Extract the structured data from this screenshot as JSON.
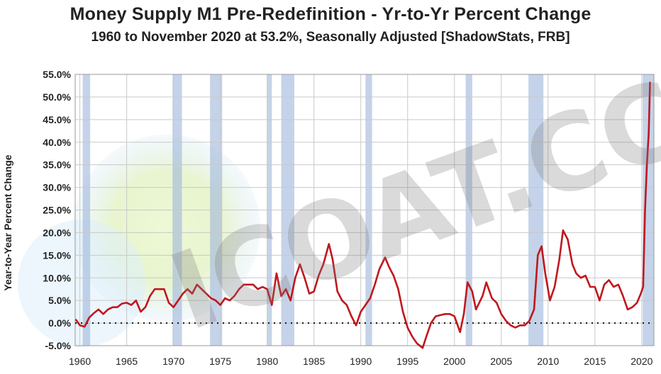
{
  "chart_data": {
    "type": "line",
    "title": "Money Supply M1 Pre-Redefinition -  Yr-to-Yr Percent Change",
    "subtitle": "1960 to November 2020 at 53.2%, Seasonally Adjusted  [ShadowStats, FRB]",
    "xlabel": "",
    "ylabel": "Year-to-Year Percent Change",
    "xlim": [
      1959.5,
      2021.3
    ],
    "ylim": [
      -5,
      55
    ],
    "yticks": [
      -5,
      0,
      5,
      10,
      15,
      20,
      25,
      30,
      35,
      40,
      45,
      50,
      55
    ],
    "ytick_labels": [
      "-5.0%",
      "0.0%",
      "5.0%",
      "10.0%",
      "15.0%",
      "20.0%",
      "25.0%",
      "30.0%",
      "35.0%",
      "40.0%",
      "45.0%",
      "50.0%",
      "55.0%"
    ],
    "xticks": [
      1960,
      1965,
      1970,
      1975,
      1980,
      1985,
      1990,
      1995,
      2000,
      2005,
      2010,
      2015,
      2020
    ],
    "xtick_labels": [
      "1960",
      "1965",
      "1970",
      "1975",
      "1980",
      "1985",
      "1990",
      "1995",
      "2000",
      "2005",
      "2010",
      "2015",
      "2020"
    ],
    "grid": true,
    "recessions": [
      [
        1960.3,
        1961.1
      ],
      [
        1969.9,
        1970.9
      ],
      [
        1973.9,
        1975.2
      ],
      [
        1980.0,
        1980.5
      ],
      [
        1981.5,
        1982.9
      ],
      [
        1990.5,
        1991.2
      ],
      [
        2001.2,
        2001.9
      ],
      [
        2007.9,
        2009.5
      ],
      [
        2020.1,
        2021.3
      ]
    ],
    "series": [
      {
        "name": "M1 Pre-Redefinition Yr-to-Yr % Change",
        "color": "#c0171d",
        "points": [
          [
            1959.6,
            0.7
          ],
          [
            1960.0,
            -0.5
          ],
          [
            1960.5,
            -0.8
          ],
          [
            1961.0,
            1.2
          ],
          [
            1961.5,
            2.2
          ],
          [
            1962.0,
            3.0
          ],
          [
            1962.5,
            2.0
          ],
          [
            1963.0,
            3.0
          ],
          [
            1963.5,
            3.5
          ],
          [
            1964.0,
            3.5
          ],
          [
            1964.5,
            4.3
          ],
          [
            1965.0,
            4.5
          ],
          [
            1965.5,
            4.0
          ],
          [
            1966.0,
            5.0
          ],
          [
            1966.5,
            2.5
          ],
          [
            1967.0,
            3.5
          ],
          [
            1967.5,
            6.0
          ],
          [
            1968.0,
            7.5
          ],
          [
            1968.5,
            7.5
          ],
          [
            1969.0,
            7.5
          ],
          [
            1969.5,
            4.5
          ],
          [
            1970.0,
            3.5
          ],
          [
            1970.5,
            5.0
          ],
          [
            1971.0,
            6.5
          ],
          [
            1971.5,
            7.5
          ],
          [
            1972.0,
            6.5
          ],
          [
            1972.5,
            8.5
          ],
          [
            1973.0,
            7.5
          ],
          [
            1973.5,
            6.5
          ],
          [
            1974.0,
            5.5
          ],
          [
            1974.5,
            5.0
          ],
          [
            1975.0,
            4.0
          ],
          [
            1975.5,
            5.5
          ],
          [
            1976.0,
            5.0
          ],
          [
            1976.5,
            6.0
          ],
          [
            1977.0,
            7.5
          ],
          [
            1977.5,
            8.5
          ],
          [
            1978.0,
            8.5
          ],
          [
            1978.5,
            8.5
          ],
          [
            1979.0,
            7.5
          ],
          [
            1979.5,
            8.0
          ],
          [
            1980.0,
            7.5
          ],
          [
            1980.5,
            4.0
          ],
          [
            1981.0,
            11.0
          ],
          [
            1981.5,
            6.0
          ],
          [
            1982.0,
            7.5
          ],
          [
            1982.5,
            5.0
          ],
          [
            1983.0,
            10.0
          ],
          [
            1983.5,
            13.0
          ],
          [
            1984.0,
            10.0
          ],
          [
            1984.5,
            6.5
          ],
          [
            1985.0,
            7.0
          ],
          [
            1985.5,
            10.5
          ],
          [
            1986.0,
            13.0
          ],
          [
            1986.6,
            17.5
          ],
          [
            1987.0,
            14.0
          ],
          [
            1987.5,
            7.0
          ],
          [
            1988.0,
            5.0
          ],
          [
            1988.5,
            4.0
          ],
          [
            1989.0,
            1.5
          ],
          [
            1989.5,
            -0.5
          ],
          [
            1990.0,
            2.5
          ],
          [
            1990.5,
            4.0
          ],
          [
            1991.0,
            5.5
          ],
          [
            1991.5,
            8.5
          ],
          [
            1992.0,
            12.0
          ],
          [
            1992.6,
            14.5
          ],
          [
            1993.0,
            12.5
          ],
          [
            1993.5,
            10.5
          ],
          [
            1994.0,
            7.5
          ],
          [
            1994.5,
            2.5
          ],
          [
            1995.0,
            -1.0
          ],
          [
            1995.5,
            -3.0
          ],
          [
            1996.0,
            -4.5
          ],
          [
            1996.6,
            -5.5
          ],
          [
            1997.0,
            -3.0
          ],
          [
            1997.5,
            0.0
          ],
          [
            1998.0,
            1.5
          ],
          [
            1999.0,
            2.0
          ],
          [
            1999.5,
            2.0
          ],
          [
            2000.0,
            1.5
          ],
          [
            2000.6,
            -2.0
          ],
          [
            2001.0,
            2.0
          ],
          [
            2001.4,
            9.0
          ],
          [
            2001.9,
            7.0
          ],
          [
            2002.3,
            3.0
          ],
          [
            2003.0,
            6.0
          ],
          [
            2003.4,
            9.0
          ],
          [
            2004.0,
            5.5
          ],
          [
            2004.5,
            4.5
          ],
          [
            2005.0,
            2.0
          ],
          [
            2005.5,
            0.5
          ],
          [
            2006.0,
            -0.5
          ],
          [
            2006.5,
            -1.0
          ],
          [
            2007.0,
            -0.5
          ],
          [
            2007.5,
            -0.5
          ],
          [
            2008.0,
            0.5
          ],
          [
            2008.5,
            3.0
          ],
          [
            2008.9,
            15.0
          ],
          [
            2009.3,
            17.0
          ],
          [
            2009.7,
            11.0
          ],
          [
            2010.2,
            5.0
          ],
          [
            2010.7,
            8.0
          ],
          [
            2011.2,
            14.0
          ],
          [
            2011.6,
            20.5
          ],
          [
            2012.1,
            18.5
          ],
          [
            2012.6,
            13.0
          ],
          [
            2013.0,
            11.0
          ],
          [
            2013.5,
            10.0
          ],
          [
            2014.0,
            10.5
          ],
          [
            2014.5,
            8.0
          ],
          [
            2015.0,
            8.0
          ],
          [
            2015.5,
            5.0
          ],
          [
            2016.0,
            8.5
          ],
          [
            2016.5,
            9.5
          ],
          [
            2017.0,
            8.0
          ],
          [
            2017.5,
            8.5
          ],
          [
            2018.0,
            6.0
          ],
          [
            2018.5,
            3.0
          ],
          [
            2019.0,
            3.5
          ],
          [
            2019.5,
            4.5
          ],
          [
            2019.9,
            6.5
          ],
          [
            2020.15,
            8.0
          ],
          [
            2020.35,
            25.0
          ],
          [
            2020.55,
            35.0
          ],
          [
            2020.75,
            42.0
          ],
          [
            2020.88,
            53.2
          ]
        ]
      }
    ]
  }
}
